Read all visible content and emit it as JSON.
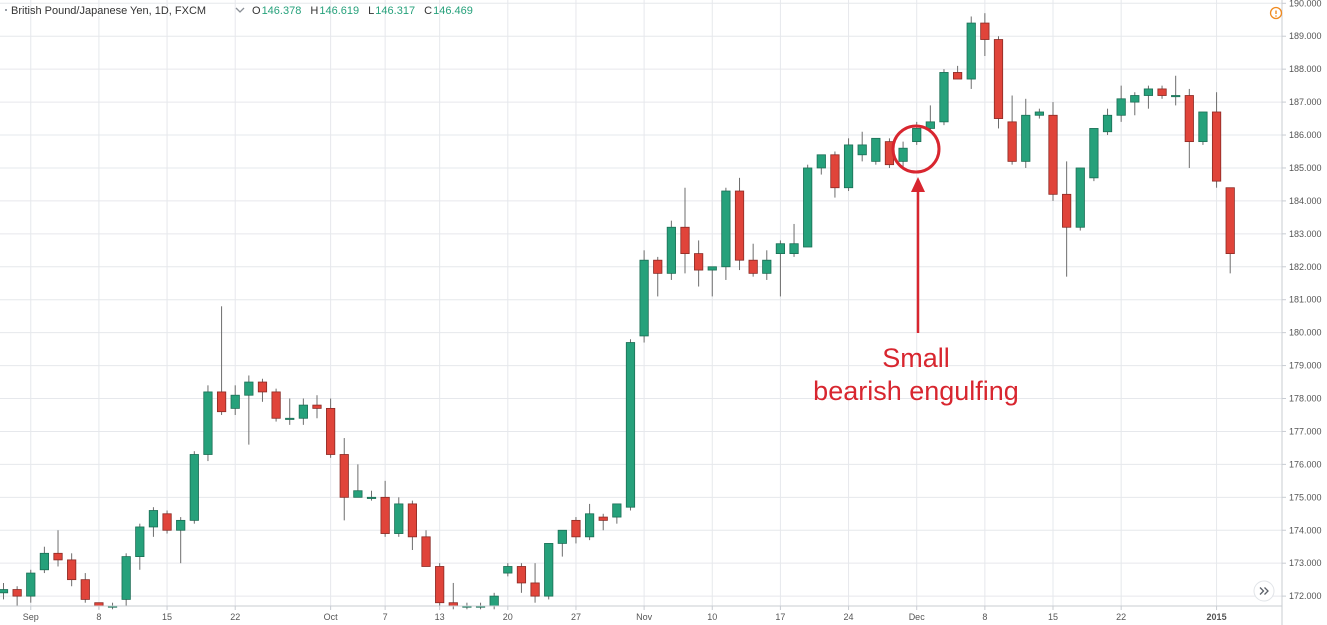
{
  "header": {
    "symbol": "British Pound/Japanese Yen, 1D, FXCM",
    "dropdown_icon": "chevron-down-icon",
    "open_label": "O",
    "open_value": "146.378",
    "high_label": "H",
    "high_value": "146.619",
    "low_label": "L",
    "low_value": "146.317",
    "close_label": "C",
    "close_value": "146.469"
  },
  "icons": {
    "info": "info-icon",
    "scroll_right": "double-chevron-right-icon"
  },
  "annotation": {
    "line1": "Small",
    "line2": "bearish engulfing",
    "color": "#d8262f"
  },
  "colors": {
    "up": "#26a17b",
    "up_border": "#1b6e55",
    "down": "#e0443a",
    "down_border": "#8a2a24",
    "wick": "#6d6d6d",
    "accent": "#f08a1f"
  },
  "chart_data": {
    "type": "candlestick",
    "title": "British Pound/Japanese Yen, 1D, FXCM",
    "ylim": [
      171.7,
      190.1
    ],
    "y_ticks": [
      "172.000",
      "173.000",
      "174.000",
      "175.000",
      "176.000",
      "177.000",
      "178.000",
      "179.000",
      "180.000",
      "181.000",
      "182.000",
      "183.000",
      "184.000",
      "185.000",
      "186.000",
      "187.000",
      "188.000",
      "189.000",
      "190.000"
    ],
    "x_ticks": [
      {
        "label": "Sep",
        "index": 2
      },
      {
        "label": "8",
        "index": 7
      },
      {
        "label": "15",
        "index": 12
      },
      {
        "label": "22",
        "index": 17
      },
      {
        "label": "Oct",
        "index": 24
      },
      {
        "label": "7",
        "index": 28
      },
      {
        "label": "13",
        "index": 32
      },
      {
        "label": "20",
        "index": 37
      },
      {
        "label": "27",
        "index": 42
      },
      {
        "label": "Nov",
        "index": 47
      },
      {
        "label": "10",
        "index": 52
      },
      {
        "label": "17",
        "index": 57
      },
      {
        "label": "24",
        "index": 62
      },
      {
        "label": "Dec",
        "index": 67
      },
      {
        "label": "8",
        "index": 72
      },
      {
        "label": "15",
        "index": 77
      },
      {
        "label": "22",
        "index": 82
      },
      {
        "label": "2015",
        "index": 89
      }
    ],
    "grid": true,
    "candles": [
      {
        "o": 172.1,
        "h": 172.4,
        "l": 171.9,
        "c": 172.2
      },
      {
        "o": 172.2,
        "h": 172.3,
        "l": 171.7,
        "c": 172.0
      },
      {
        "o": 172.0,
        "h": 172.8,
        "l": 171.8,
        "c": 172.7
      },
      {
        "o": 172.8,
        "h": 173.5,
        "l": 172.7,
        "c": 173.3
      },
      {
        "o": 173.3,
        "h": 174.0,
        "l": 172.9,
        "c": 173.1
      },
      {
        "o": 173.1,
        "h": 173.3,
        "l": 172.3,
        "c": 172.5
      },
      {
        "o": 172.5,
        "h": 172.7,
        "l": 171.8,
        "c": 171.9
      },
      {
        "o": 171.8,
        "h": 171.8,
        "l": 171.6,
        "c": 171.7
      },
      {
        "o": 171.7,
        "h": 171.8,
        "l": 171.6,
        "c": 171.7
      },
      {
        "o": 171.9,
        "h": 173.3,
        "l": 171.7,
        "c": 173.2
      },
      {
        "o": 173.2,
        "h": 174.2,
        "l": 172.8,
        "c": 174.1
      },
      {
        "o": 174.1,
        "h": 174.7,
        "l": 173.8,
        "c": 174.6
      },
      {
        "o": 174.5,
        "h": 174.6,
        "l": 173.9,
        "c": 174.0
      },
      {
        "o": 174.0,
        "h": 174.4,
        "l": 173.0,
        "c": 174.3
      },
      {
        "o": 174.3,
        "h": 176.4,
        "l": 174.2,
        "c": 176.3
      },
      {
        "o": 176.3,
        "h": 178.4,
        "l": 176.1,
        "c": 178.2
      },
      {
        "o": 178.2,
        "h": 180.8,
        "l": 177.5,
        "c": 177.6
      },
      {
        "o": 177.7,
        "h": 178.4,
        "l": 177.5,
        "c": 178.1
      },
      {
        "o": 178.1,
        "h": 178.7,
        "l": 176.6,
        "c": 178.5
      },
      {
        "o": 178.5,
        "h": 178.6,
        "l": 177.9,
        "c": 178.2
      },
      {
        "o": 178.2,
        "h": 178.3,
        "l": 177.3,
        "c": 177.4
      },
      {
        "o": 177.4,
        "h": 178.0,
        "l": 177.2,
        "c": 177.4
      },
      {
        "o": 177.4,
        "h": 178.0,
        "l": 177.2,
        "c": 177.8
      },
      {
        "o": 177.8,
        "h": 178.1,
        "l": 177.4,
        "c": 177.7
      },
      {
        "o": 177.7,
        "h": 178.0,
        "l": 176.2,
        "c": 176.3
      },
      {
        "o": 176.3,
        "h": 176.8,
        "l": 174.3,
        "c": 175.0
      },
      {
        "o": 175.0,
        "h": 176.0,
        "l": 175.0,
        "c": 175.2
      },
      {
        "o": 175.0,
        "h": 175.2,
        "l": 174.9,
        "c": 175.0
      },
      {
        "o": 175.0,
        "h": 175.5,
        "l": 173.8,
        "c": 173.9
      },
      {
        "o": 173.9,
        "h": 175.0,
        "l": 173.8,
        "c": 174.8
      },
      {
        "o": 174.8,
        "h": 174.9,
        "l": 173.4,
        "c": 173.8
      },
      {
        "o": 173.8,
        "h": 174.0,
        "l": 172.9,
        "c": 172.9
      },
      {
        "o": 172.9,
        "h": 173.0,
        "l": 171.7,
        "c": 171.8
      },
      {
        "o": 171.8,
        "h": 172.4,
        "l": 171.6,
        "c": 171.7
      },
      {
        "o": 171.7,
        "h": 171.8,
        "l": 171.6,
        "c": 171.7
      },
      {
        "o": 171.7,
        "h": 171.8,
        "l": 171.6,
        "c": 171.7
      },
      {
        "o": 171.7,
        "h": 172.1,
        "l": 171.6,
        "c": 172.0
      },
      {
        "o": 172.7,
        "h": 173.0,
        "l": 172.6,
        "c": 172.9
      },
      {
        "o": 172.9,
        "h": 173.0,
        "l": 172.1,
        "c": 172.4
      },
      {
        "o": 172.4,
        "h": 173.0,
        "l": 171.8,
        "c": 172.0
      },
      {
        "o": 172.0,
        "h": 173.6,
        "l": 171.9,
        "c": 173.6
      },
      {
        "o": 173.6,
        "h": 174.0,
        "l": 173.2,
        "c": 174.0
      },
      {
        "o": 174.3,
        "h": 174.4,
        "l": 173.6,
        "c": 173.8
      },
      {
        "o": 173.8,
        "h": 174.8,
        "l": 173.7,
        "c": 174.5
      },
      {
        "o": 174.4,
        "h": 174.5,
        "l": 174.0,
        "c": 174.3
      },
      {
        "o": 174.4,
        "h": 174.8,
        "l": 174.2,
        "c": 174.8
      },
      {
        "o": 174.7,
        "h": 179.8,
        "l": 174.6,
        "c": 179.7
      },
      {
        "o": 179.9,
        "h": 182.5,
        "l": 179.7,
        "c": 182.2
      },
      {
        "o": 182.2,
        "h": 182.3,
        "l": 181.1,
        "c": 181.8
      },
      {
        "o": 181.8,
        "h": 183.4,
        "l": 181.6,
        "c": 183.2
      },
      {
        "o": 183.2,
        "h": 184.4,
        "l": 181.8,
        "c": 182.4
      },
      {
        "o": 182.4,
        "h": 182.8,
        "l": 181.4,
        "c": 181.9
      },
      {
        "o": 181.9,
        "h": 182.0,
        "l": 181.1,
        "c": 182.0
      },
      {
        "o": 182.0,
        "h": 184.4,
        "l": 181.6,
        "c": 184.3
      },
      {
        "o": 184.3,
        "h": 184.7,
        "l": 181.9,
        "c": 182.2
      },
      {
        "o": 182.2,
        "h": 182.7,
        "l": 181.7,
        "c": 181.8
      },
      {
        "o": 181.8,
        "h": 182.5,
        "l": 181.6,
        "c": 182.2
      },
      {
        "o": 182.4,
        "h": 182.8,
        "l": 181.1,
        "c": 182.7
      },
      {
        "o": 182.4,
        "h": 183.3,
        "l": 182.3,
        "c": 182.7
      },
      {
        "o": 182.6,
        "h": 185.1,
        "l": 182.6,
        "c": 185.0
      },
      {
        "o": 185.0,
        "h": 185.4,
        "l": 184.8,
        "c": 185.4
      },
      {
        "o": 185.4,
        "h": 185.5,
        "l": 184.1,
        "c": 184.4
      },
      {
        "o": 184.4,
        "h": 185.9,
        "l": 184.3,
        "c": 185.7
      },
      {
        "o": 185.4,
        "h": 186.1,
        "l": 185.2,
        "c": 185.7
      },
      {
        "o": 185.2,
        "h": 185.9,
        "l": 185.1,
        "c": 185.9
      },
      {
        "o": 185.8,
        "h": 185.9,
        "l": 185.0,
        "c": 185.1
      },
      {
        "o": 185.2,
        "h": 185.8,
        "l": 185.0,
        "c": 185.6
      },
      {
        "o": 185.8,
        "h": 186.4,
        "l": 185.7,
        "c": 186.2
      },
      {
        "o": 186.2,
        "h": 186.9,
        "l": 186.1,
        "c": 186.4
      },
      {
        "o": 186.4,
        "h": 188.0,
        "l": 186.3,
        "c": 187.9
      },
      {
        "o": 187.9,
        "h": 188.1,
        "l": 187.7,
        "c": 187.7
      },
      {
        "o": 187.7,
        "h": 189.6,
        "l": 187.4,
        "c": 189.4
      },
      {
        "o": 189.4,
        "h": 189.7,
        "l": 188.4,
        "c": 188.9
      },
      {
        "o": 188.9,
        "h": 189.0,
        "l": 186.2,
        "c": 186.5
      },
      {
        "o": 186.4,
        "h": 187.2,
        "l": 185.1,
        "c": 185.2
      },
      {
        "o": 185.2,
        "h": 187.1,
        "l": 185.0,
        "c": 186.6
      },
      {
        "o": 186.6,
        "h": 186.8,
        "l": 186.5,
        "c": 186.7
      },
      {
        "o": 186.6,
        "h": 187.0,
        "l": 184.0,
        "c": 184.2
      },
      {
        "o": 184.2,
        "h": 185.2,
        "l": 181.7,
        "c": 183.2
      },
      {
        "o": 183.2,
        "h": 185.0,
        "l": 183.1,
        "c": 185.0
      },
      {
        "o": 184.7,
        "h": 186.2,
        "l": 184.6,
        "c": 186.2
      },
      {
        "o": 186.1,
        "h": 186.8,
        "l": 186.0,
        "c": 186.6
      },
      {
        "o": 186.6,
        "h": 187.5,
        "l": 186.4,
        "c": 187.1
      },
      {
        "o": 187.0,
        "h": 187.3,
        "l": 186.6,
        "c": 187.2
      },
      {
        "o": 187.2,
        "h": 187.5,
        "l": 186.8,
        "c": 187.4
      },
      {
        "o": 187.4,
        "h": 187.5,
        "l": 187.1,
        "c": 187.2
      },
      {
        "o": 187.2,
        "h": 187.8,
        "l": 186.9,
        "c": 187.2
      },
      {
        "o": 187.2,
        "h": 187.4,
        "l": 185.0,
        "c": 185.8
      },
      {
        "o": 185.8,
        "h": 186.7,
        "l": 185.7,
        "c": 186.7
      },
      {
        "o": 186.7,
        "h": 187.3,
        "l": 184.4,
        "c": 184.6
      },
      {
        "o": 184.4,
        "h": 184.4,
        "l": 181.8,
        "c": 182.4
      }
    ]
  }
}
